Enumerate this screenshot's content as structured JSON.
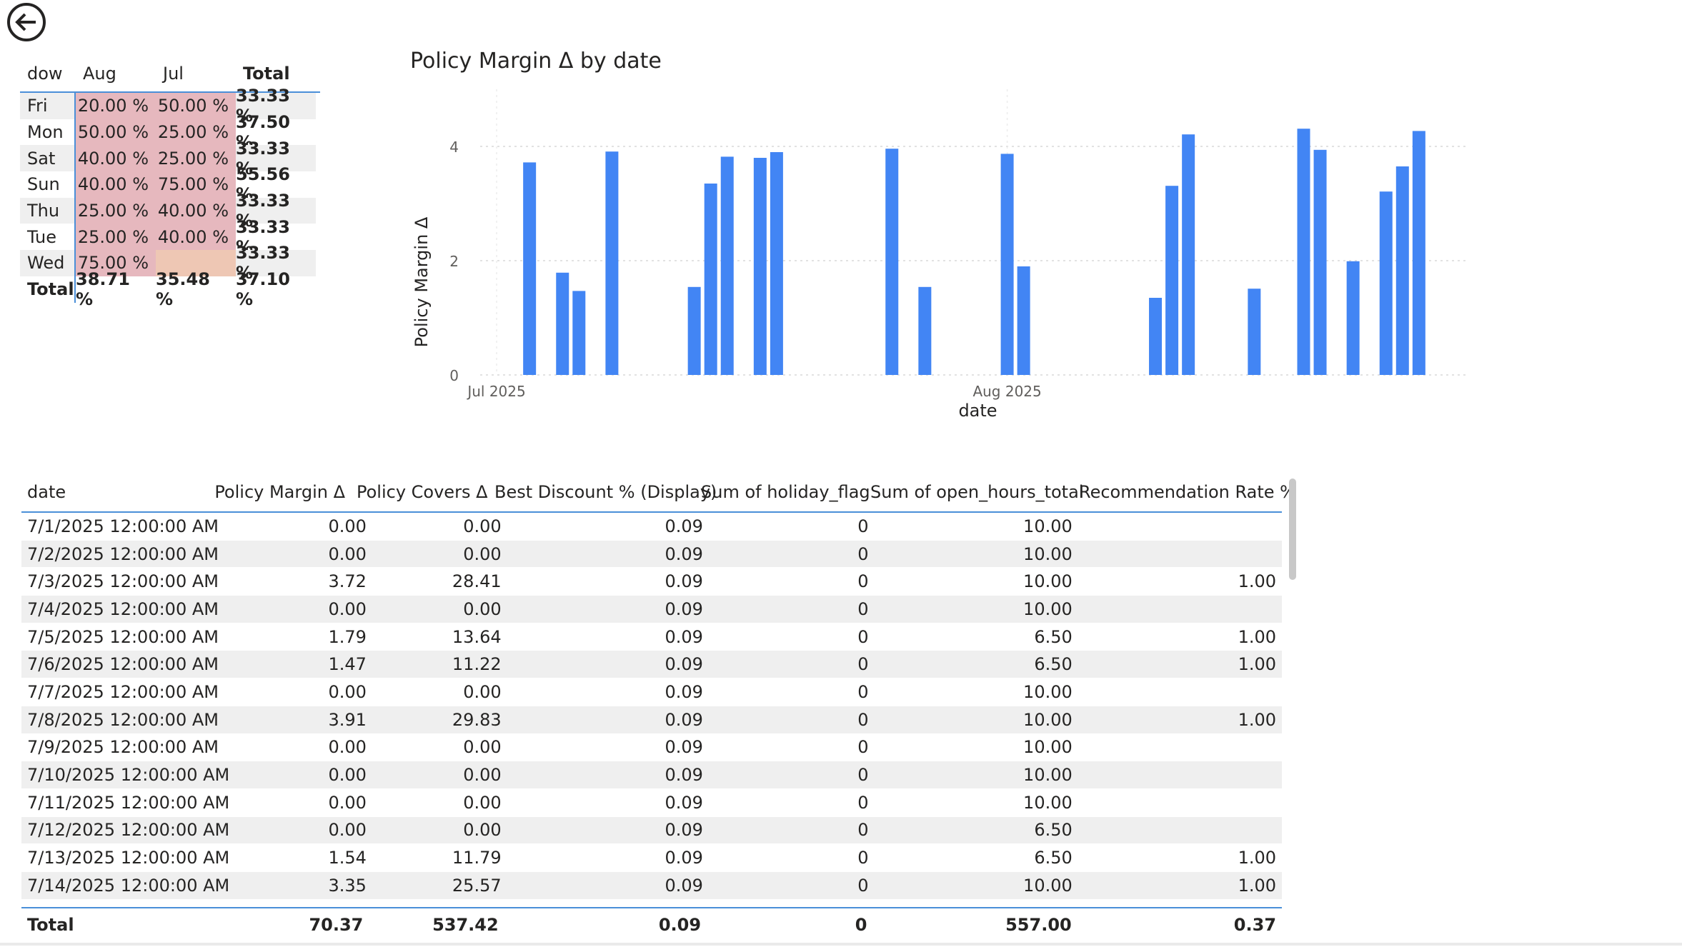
{
  "matrix": {
    "headers": {
      "dow": "dow",
      "aug": "Aug",
      "jul": "Jul",
      "total": "Total"
    },
    "rows": [
      {
        "dow": "Fri",
        "aug": "20.00 %",
        "jul": "50.00 %",
        "total": "33.33 %"
      },
      {
        "dow": "Mon",
        "aug": "50.00 %",
        "jul": "25.00 %",
        "total": "37.50 %"
      },
      {
        "dow": "Sat",
        "aug": "40.00 %",
        "jul": "25.00 %",
        "total": "33.33 %"
      },
      {
        "dow": "Sun",
        "aug": "40.00 %",
        "jul": "75.00 %",
        "total": "55.56 %"
      },
      {
        "dow": "Thu",
        "aug": "25.00 %",
        "jul": "40.00 %",
        "total": "33.33 %"
      },
      {
        "dow": "Tue",
        "aug": "25.00 %",
        "jul": "40.00 %",
        "total": "33.33 %"
      },
      {
        "dow": "Wed",
        "aug": "75.00 %",
        "jul": "",
        "total": "33.33 %"
      }
    ],
    "total_row": {
      "dow": "Total",
      "aug": "38.71 %",
      "jul": "35.48 %",
      "total": "37.10 %"
    },
    "colors": {
      "heat": "#e6b8be",
      "heat_empty": "#eec7b4",
      "border": "#4a8fd8"
    }
  },
  "chart_data": {
    "type": "bar",
    "title": "Policy Margin Δ by date",
    "xlabel": "date",
    "ylabel": "Policy Margin Δ",
    "ylim": [
      0,
      5
    ],
    "yticks": [
      "0",
      "2",
      "4"
    ],
    "xticks": [
      "Jul 2025",
      "Aug 2025"
    ],
    "grid": true,
    "bar_color": "#4285f4",
    "x": [
      "2025-07-03",
      "2025-07-05",
      "2025-07-06",
      "2025-07-08",
      "2025-07-13",
      "2025-07-14",
      "2025-07-15",
      "2025-07-17",
      "2025-07-18",
      "2025-07-25",
      "2025-07-27",
      "2025-08-01",
      "2025-08-02",
      "2025-08-10",
      "2025-08-11",
      "2025-08-12",
      "2025-08-16",
      "2025-08-19",
      "2025-08-20",
      "2025-08-22",
      "2025-08-24",
      "2025-08-25",
      "2025-08-26"
    ],
    "values": [
      3.72,
      1.79,
      1.47,
      3.91,
      1.54,
      3.35,
      3.82,
      3.8,
      3.9,
      3.96,
      1.54,
      3.87,
      1.9,
      1.35,
      3.31,
      4.21,
      1.51,
      4.31,
      3.94,
      1.99,
      3.21,
      3.65,
      4.27
    ]
  },
  "table": {
    "headers": [
      "date",
      "Policy Margin Δ",
      "Policy Covers Δ",
      "Best Discount % (Display)",
      "Sum of holiday_flag",
      "Sum of open_hours_total",
      "Recommendation Rate %"
    ],
    "rows": [
      [
        "7/1/2025 12:00:00 AM",
        "0.00",
        "0.00",
        "0.09",
        "0",
        "10.00",
        ""
      ],
      [
        "7/2/2025 12:00:00 AM",
        "0.00",
        "0.00",
        "0.09",
        "0",
        "10.00",
        ""
      ],
      [
        "7/3/2025 12:00:00 AM",
        "3.72",
        "28.41",
        "0.09",
        "0",
        "10.00",
        "1.00"
      ],
      [
        "7/4/2025 12:00:00 AM",
        "0.00",
        "0.00",
        "0.09",
        "0",
        "10.00",
        ""
      ],
      [
        "7/5/2025 12:00:00 AM",
        "1.79",
        "13.64",
        "0.09",
        "0",
        "6.50",
        "1.00"
      ],
      [
        "7/6/2025 12:00:00 AM",
        "1.47",
        "11.22",
        "0.09",
        "0",
        "6.50",
        "1.00"
      ],
      [
        "7/7/2025 12:00:00 AM",
        "0.00",
        "0.00",
        "0.09",
        "0",
        "10.00",
        ""
      ],
      [
        "7/8/2025 12:00:00 AM",
        "3.91",
        "29.83",
        "0.09",
        "0",
        "10.00",
        "1.00"
      ],
      [
        "7/9/2025 12:00:00 AM",
        "0.00",
        "0.00",
        "0.09",
        "0",
        "10.00",
        ""
      ],
      [
        "7/10/2025 12:00:00 AM",
        "0.00",
        "0.00",
        "0.09",
        "0",
        "10.00",
        ""
      ],
      [
        "7/11/2025 12:00:00 AM",
        "0.00",
        "0.00",
        "0.09",
        "0",
        "10.00",
        ""
      ],
      [
        "7/12/2025 12:00:00 AM",
        "0.00",
        "0.00",
        "0.09",
        "0",
        "6.50",
        ""
      ],
      [
        "7/13/2025 12:00:00 AM",
        "1.54",
        "11.79",
        "0.09",
        "0",
        "6.50",
        "1.00"
      ],
      [
        "7/14/2025 12:00:00 AM",
        "3.35",
        "25.57",
        "0.09",
        "0",
        "10.00",
        "1.00"
      ]
    ],
    "total": [
      "Total",
      "70.37",
      "537.42",
      "0.09",
      "0",
      "557.00",
      "0.37"
    ]
  },
  "icons": {
    "back": "back-arrow-icon"
  }
}
